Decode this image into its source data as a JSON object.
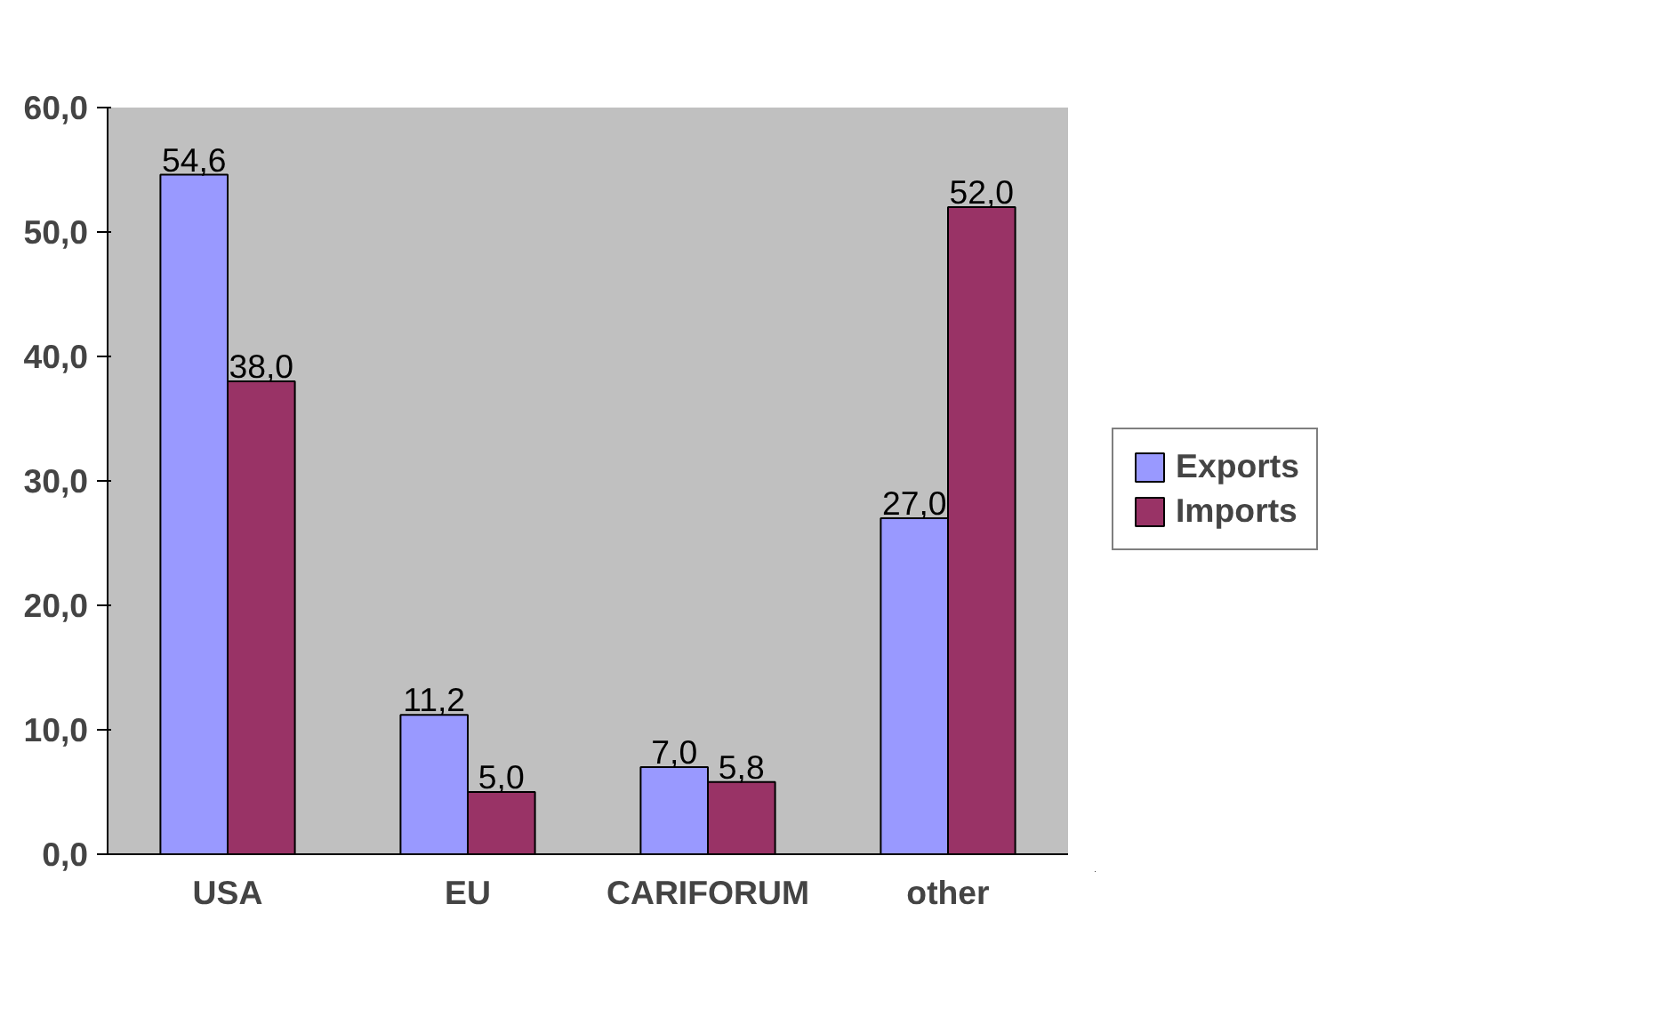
{
  "chart_data": {
    "type": "bar",
    "categories": [
      "USA",
      "EU",
      "CARIFORUM",
      "other"
    ],
    "series": [
      {
        "name": "Exports",
        "color": "#9999ff",
        "values": [
          54.6,
          11.2,
          7.0,
          27.0
        ],
        "value_labels": [
          "54,6",
          "11,2",
          "7,0",
          "27,0"
        ]
      },
      {
        "name": "Imports",
        "color": "#993366",
        "values": [
          38.0,
          5.0,
          5.8,
          52.0
        ],
        "value_labels": [
          "38,0",
          "5,0",
          "5,8",
          "52,0"
        ]
      }
    ],
    "ylim": [
      0,
      60
    ],
    "yticks": [
      {
        "value": 0,
        "label": "0,0"
      },
      {
        "value": 10,
        "label": "10,0"
      },
      {
        "value": 20,
        "label": "20,0"
      },
      {
        "value": 30,
        "label": "30,0"
      },
      {
        "value": 40,
        "label": "40,0"
      },
      {
        "value": 50,
        "label": "50,0"
      },
      {
        "value": 60,
        "label": "60,0"
      }
    ],
    "grid": false,
    "legend": "right"
  }
}
